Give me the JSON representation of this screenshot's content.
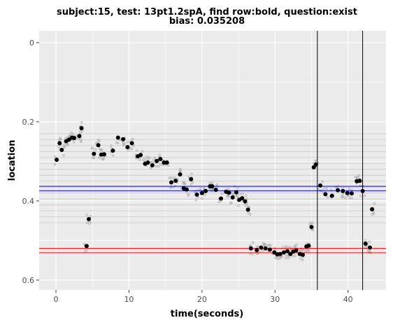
{
  "chart_data": {
    "type": "scatter",
    "title_line1": "subject:15, test: 13pt1.2spA, find row:bold, question:exist",
    "title_line2": "bias: 0.035208",
    "xlabel": "time(seconds)",
    "ylabel": "location",
    "xlim": [
      -2.3,
      45.2
    ],
    "ylim": [
      -0.03,
      0.625
    ],
    "y_reversed": true,
    "grid": true,
    "legend": "none",
    "x_ticks": [
      0,
      10,
      20,
      30,
      40
    ],
    "y_ticks": [
      0,
      0.2,
      0.4,
      0.6
    ],
    "x_tick_labels": [
      "0",
      "10",
      "20",
      "30",
      "40"
    ],
    "y_tick_labels": [
      "0",
      "0.2",
      "0.4",
      "0.6"
    ],
    "colors": {
      "panel": "#ebebeb",
      "grid": "#ffffff",
      "row_lines": "#c9c9c9",
      "blue": "#0000ff",
      "red": "#ff0000",
      "vline": "#000000",
      "point": "#000000",
      "raw": "#a9a9a9"
    },
    "row_lines": [
      0.23,
      0.245,
      0.26,
      0.275,
      0.29,
      0.305,
      0.32,
      0.335,
      0.35,
      0.365,
      0.38,
      0.395,
      0.41,
      0.425,
      0.44,
      0.455
    ],
    "blue_lines": [
      0.363,
      0.374
    ],
    "red_lines": [
      0.52,
      0.531
    ],
    "vlines": [
      35.8,
      42.0
    ],
    "fixations": {
      "x": [
        0.1,
        0.5,
        0.8,
        1.4,
        1.8,
        2.2,
        2.5,
        3.2,
        3.5,
        4.2,
        4.5,
        5.2,
        5.8,
        6.2,
        6.6,
        7.8,
        8.5,
        9.2,
        9.8,
        10.4,
        11.2,
        11.6,
        12.2,
        12.6,
        13.2,
        13.8,
        14.3,
        14.8,
        15.2,
        15.8,
        16.4,
        17.0,
        17.5,
        17.9,
        18.5,
        19.3,
        20.0,
        20.5,
        21.1,
        21.4,
        21.9,
        22.6,
        23.3,
        23.7,
        24.2,
        24.7,
        25.1,
        25.5,
        25.9,
        26.3,
        26.7,
        27.5,
        28.1,
        28.7,
        29.3,
        29.9,
        30.3,
        30.7,
        31.2,
        31.7,
        32.1,
        32.5,
        32.9,
        33.4,
        33.8,
        34.3,
        34.6,
        35.0,
        35.3,
        35.6,
        36.2,
        36.9,
        37.8,
        38.6,
        39.3,
        39.9,
        40.5,
        41.2,
        41.6,
        42.0,
        42.4,
        43.0,
        43.3
      ],
      "y": [
        0.296,
        0.254,
        0.271,
        0.249,
        0.245,
        0.24,
        0.241,
        0.236,
        0.216,
        0.514,
        0.446,
        0.281,
        0.259,
        0.283,
        0.282,
        0.273,
        0.24,
        0.244,
        0.264,
        0.254,
        0.287,
        0.284,
        0.306,
        0.303,
        0.31,
        0.299,
        0.294,
        0.303,
        0.303,
        0.353,
        0.349,
        0.333,
        0.368,
        0.371,
        0.345,
        0.384,
        0.38,
        0.375,
        0.363,
        0.363,
        0.372,
        0.394,
        0.377,
        0.379,
        0.391,
        0.378,
        0.397,
        0.393,
        0.401,
        0.422,
        0.52,
        0.524,
        0.518,
        0.52,
        0.523,
        0.53,
        0.535,
        0.534,
        0.53,
        0.527,
        0.534,
        0.528,
        0.525,
        0.534,
        0.536,
        0.515,
        0.513,
        0.466,
        0.315,
        0.308,
        0.361,
        0.383,
        0.387,
        0.373,
        0.375,
        0.38,
        0.381,
        0.35,
        0.349,
        0.375,
        0.508,
        0.518,
        0.421
      ]
    }
  }
}
